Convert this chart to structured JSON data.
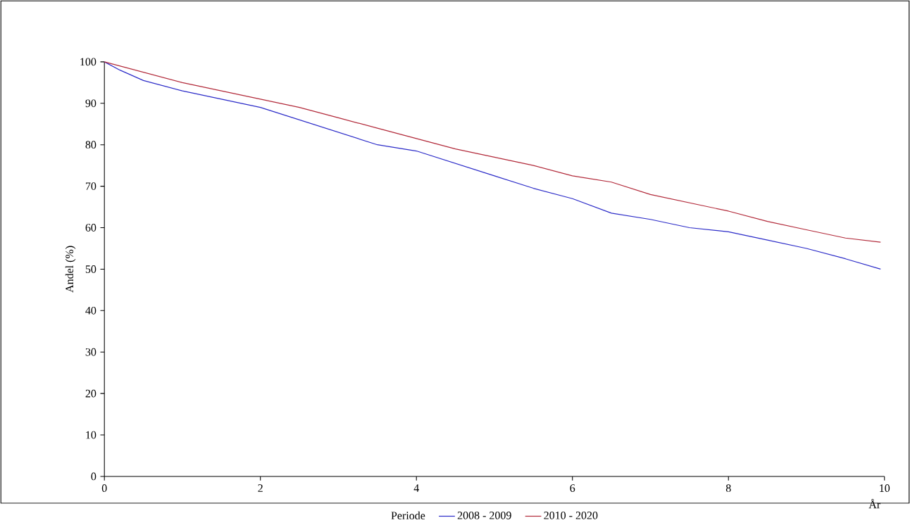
{
  "chart_data": {
    "type": "line",
    "xlabel": "År",
    "ylabel": "Andel (%)",
    "legend_title": "Periode",
    "legend": "bottom",
    "xlim": [
      0,
      10
    ],
    "ylim": [
      0,
      100
    ],
    "xticks": [
      0,
      2,
      4,
      6,
      8,
      10
    ],
    "yticks": [
      0,
      10,
      20,
      30,
      40,
      50,
      60,
      70,
      80,
      90,
      100
    ],
    "grid": false,
    "marker": "none",
    "line_style": "solid",
    "series": [
      {
        "name": "2008 - 2009",
        "color": "#2b2bc8",
        "x": [
          0,
          0.2,
          0.5,
          1.0,
          1.5,
          2.0,
          2.5,
          3.0,
          3.5,
          4.0,
          4.5,
          5.0,
          5.5,
          6.0,
          6.5,
          7.0,
          7.5,
          8.0,
          8.5,
          9.0,
          9.5,
          9.95
        ],
        "values": [
          100,
          98,
          95.5,
          93,
          91,
          89,
          86,
          83,
          80,
          78.5,
          75.5,
          72.5,
          69.5,
          67,
          63.5,
          62,
          60,
          59,
          57,
          55,
          52.5,
          50
        ]
      },
      {
        "name": "2010 - 2020",
        "color": "#b22a3a",
        "x": [
          0,
          0.5,
          1.0,
          1.5,
          2.0,
          2.5,
          3.0,
          3.5,
          4.0,
          4.5,
          5.0,
          5.5,
          6.0,
          6.5,
          7.0,
          7.5,
          8.0,
          8.5,
          9.0,
          9.5,
          9.95
        ],
        "values": [
          100,
          97.5,
          95,
          93,
          91,
          89,
          86.5,
          84,
          81.5,
          79,
          77,
          75,
          72.5,
          71,
          68,
          66,
          64,
          61.5,
          59.5,
          57.5,
          56.5
        ]
      }
    ]
  }
}
